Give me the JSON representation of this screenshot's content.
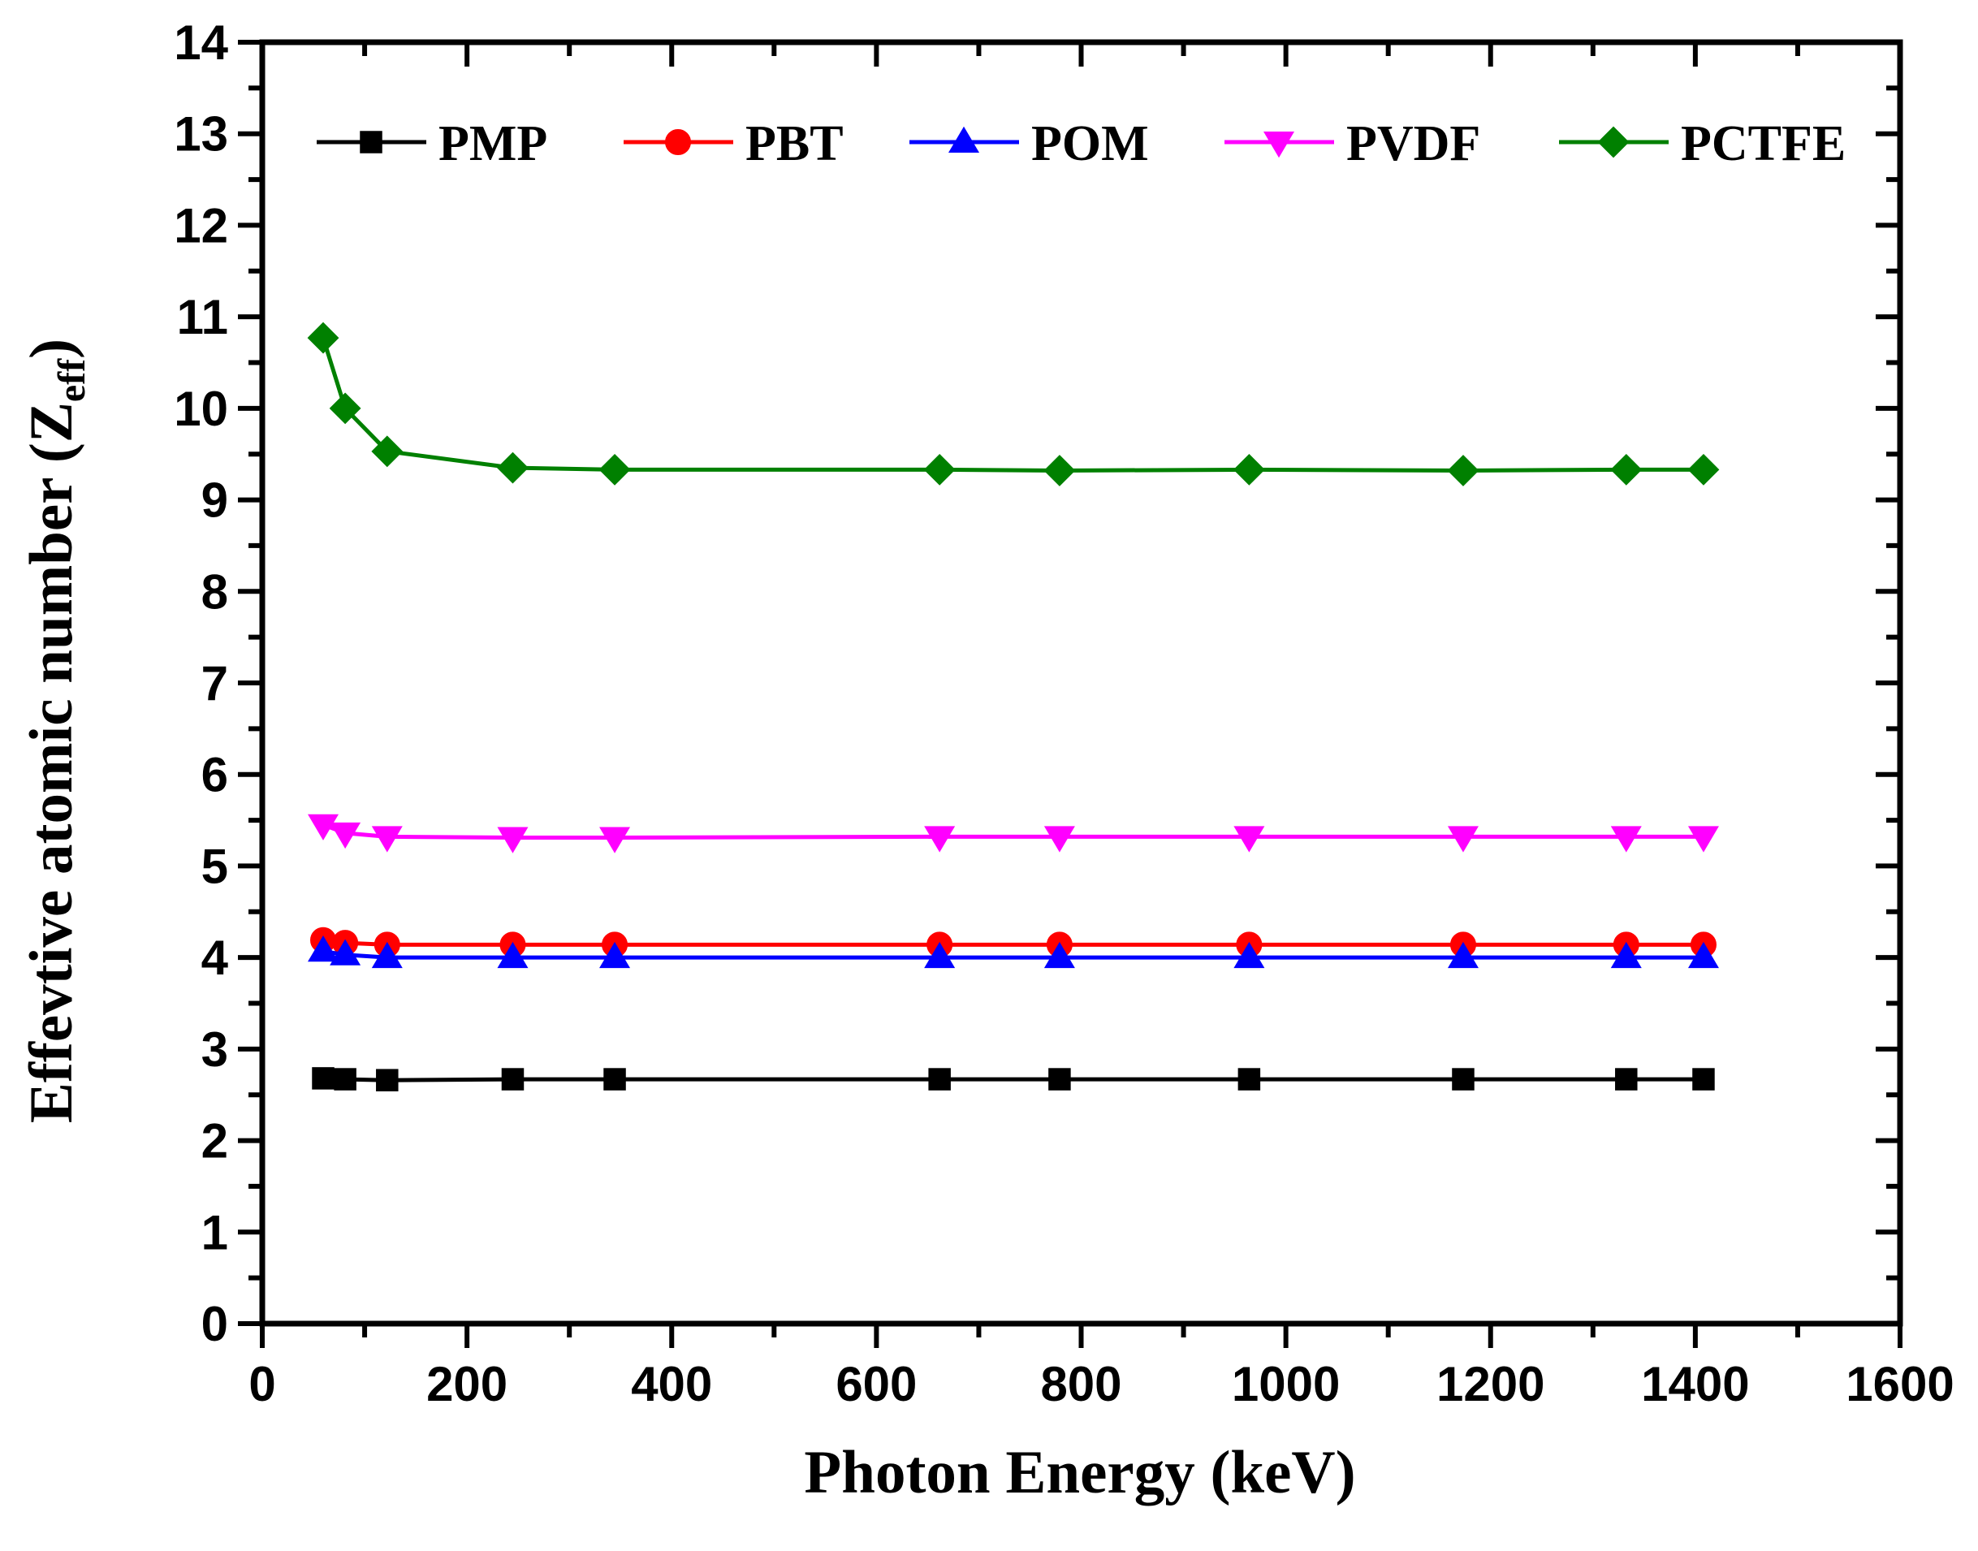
{
  "chart_data": {
    "type": "line",
    "title": "",
    "xlabel": "Photon Energy (keV)",
    "ylabel_main": "Effevtive atomic number (Z",
    "ylabel_sub": "eff",
    "ylabel_close": ")",
    "xlim": [
      0,
      1600
    ],
    "ylim": [
      0,
      14
    ],
    "xticks": [
      0,
      200,
      400,
      600,
      800,
      1000,
      1200,
      1400,
      1600
    ],
    "yticks": [
      0,
      1,
      2,
      3,
      4,
      5,
      6,
      7,
      8,
      9,
      10,
      11,
      12,
      13,
      14
    ],
    "x": [
      59.5,
      81,
      122,
      244.7,
      344.3,
      661.7,
      778.9,
      964.1,
      1173.2,
      1332.5,
      1408
    ],
    "legend_position": "top",
    "series": [
      {
        "name": "PMP",
        "color": "#000000",
        "marker": "square",
        "values": [
          2.68,
          2.67,
          2.66,
          2.67,
          2.67,
          2.67,
          2.67,
          2.67,
          2.67,
          2.67,
          2.67
        ]
      },
      {
        "name": "PBT",
        "color": "#ff0000",
        "marker": "circle",
        "values": [
          4.19,
          4.16,
          4.14,
          4.14,
          4.14,
          4.14,
          4.14,
          4.14,
          4.14,
          4.14,
          4.14
        ]
      },
      {
        "name": "POM",
        "color": "#0000ff",
        "marker": "triangle-up",
        "values": [
          4.07,
          4.03,
          4.0,
          4.0,
          4.0,
          4.0,
          4.0,
          4.0,
          4.0,
          4.0,
          4.0
        ]
      },
      {
        "name": "PVDF",
        "color": "#ff00ff",
        "marker": "triangle-down",
        "values": [
          5.45,
          5.36,
          5.32,
          5.31,
          5.31,
          5.32,
          5.32,
          5.32,
          5.32,
          5.32,
          5.32
        ]
      },
      {
        "name": "PCTFE",
        "color": "#008000",
        "marker": "diamond",
        "values": [
          10.77,
          10.0,
          9.53,
          9.35,
          9.33,
          9.33,
          9.32,
          9.33,
          9.32,
          9.33,
          9.33
        ]
      }
    ]
  }
}
